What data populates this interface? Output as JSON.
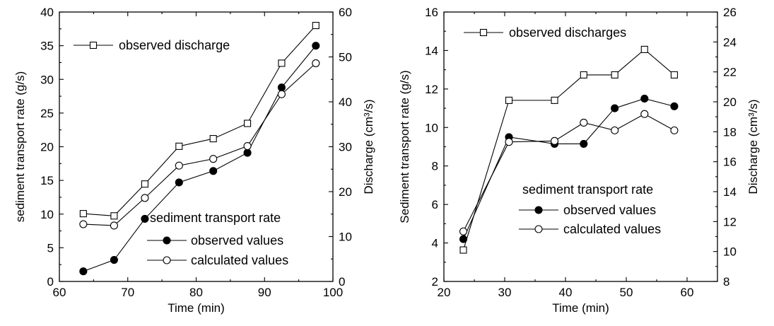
{
  "chart_data": [
    {
      "type": "line",
      "xlabel": "Time (min)",
      "ylabel": "sediment transport rate (g/s)",
      "y2label": "Discharge (cm³/s)",
      "xlim": [
        60,
        100
      ],
      "ylim": [
        0,
        40
      ],
      "y2lim": [
        0,
        60
      ],
      "xticks": [
        "60",
        "70",
        "80",
        "90",
        "100"
      ],
      "yticks": [
        "0",
        "5",
        "10",
        "15",
        "20",
        "25",
        "30",
        "35",
        "40"
      ],
      "y2ticks": [
        "0",
        "10",
        "20",
        "30",
        "40",
        "50",
        "60"
      ],
      "legend_discharge": "observed discharge",
      "legend_group_title": "sediment transport rate",
      "series": [
        {
          "name": "observed discharge",
          "axis": "right",
          "marker": "square",
          "x": [
            63.5,
            68,
            72.5,
            77.5,
            82.5,
            87.5,
            92.5,
            97.5
          ],
          "values": [
            15.1,
            14.6,
            21.7,
            30.1,
            31.8,
            35.2,
            48.6,
            57.0
          ]
        },
        {
          "name": "observed values",
          "axis": "left",
          "marker": "filled-circle",
          "x": [
            63.5,
            68,
            72.5,
            77.5,
            82.5,
            87.5,
            92.5,
            97.5
          ],
          "values": [
            1.5,
            3.2,
            9.3,
            14.7,
            16.4,
            19.1,
            28.8,
            35.0
          ]
        },
        {
          "name": "calculated values",
          "axis": "left",
          "marker": "open-circle",
          "x": [
            63.5,
            68,
            72.5,
            77.5,
            82.5,
            87.5,
            92.5,
            97.5
          ],
          "values": [
            8.5,
            8.3,
            12.4,
            17.2,
            18.2,
            20.1,
            27.8,
            32.4
          ]
        }
      ]
    },
    {
      "type": "line",
      "xlabel": "Time (min)",
      "ylabel": "Sediment transport rate (g/s)",
      "y2label": "Discharge (cm³/s)",
      "xlim": [
        20,
        65
      ],
      "ylim": [
        2,
        16
      ],
      "y2lim": [
        8,
        26
      ],
      "xticks": [
        "20",
        "30",
        "40",
        "50",
        "60"
      ],
      "yticks": [
        "2",
        "4",
        "6",
        "8",
        "10",
        "12",
        "14",
        "16"
      ],
      "y2ticks": [
        "8",
        "10",
        "12",
        "14",
        "16",
        "18",
        "20",
        "22",
        "24",
        "26"
      ],
      "legend_discharge": "observed discharges",
      "legend_group_title": "sediment transport rate",
      "series": [
        {
          "name": "observed discharges",
          "axis": "right",
          "marker": "square",
          "x": [
            23.2,
            30.7,
            38.2,
            43,
            48.1,
            53,
            57.9
          ],
          "values": [
            10.1,
            20.1,
            20.1,
            21.8,
            21.8,
            23.5,
            21.8
          ]
        },
        {
          "name": "observed values",
          "axis": "left",
          "marker": "filled-circle",
          "x": [
            23.2,
            30.7,
            38.2,
            43,
            48.1,
            53,
            57.9
          ],
          "values": [
            4.2,
            9.5,
            9.15,
            9.15,
            11.0,
            11.5,
            11.1
          ]
        },
        {
          "name": "calculated values",
          "axis": "left",
          "marker": "open-circle",
          "x": [
            23.2,
            30.7,
            38.2,
            43,
            48.1,
            53,
            57.9
          ],
          "values": [
            4.6,
            9.25,
            9.3,
            10.25,
            9.85,
            10.7,
            9.85
          ]
        }
      ]
    }
  ]
}
